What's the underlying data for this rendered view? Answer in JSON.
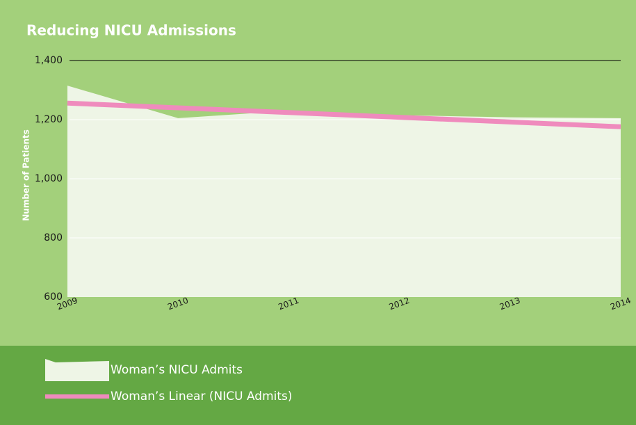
{
  "chart_data": {
    "type": "line",
    "title": "Reducing NICU Admissions",
    "y_label": "Number of Patients",
    "categories": [
      "2009",
      "2010",
      "2011",
      "2012",
      "2013",
      "2014"
    ],
    "series": [
      {
        "name": "Woman’s NICU Admits",
        "type": "area",
        "color": "#eef5e6",
        "values": [
          1315,
          1205,
          1230,
          1215,
          1208,
          1205
        ]
      },
      {
        "name": "Woman’s Linear (NICU Admits)",
        "type": "line",
        "color": "#ef8bbd",
        "values": [
          1256,
          1240,
          1224,
          1208,
          1192,
          1176
        ]
      }
    ],
    "ylim": [
      600,
      1400
    ],
    "yticks": [
      600,
      800,
      {
        "value": 1000,
        "label": "1,000"
      },
      {
        "value": 1200,
        "label": "1,200"
      },
      {
        "value": 1400,
        "label": "1,400"
      }
    ],
    "grid": true
  }
}
